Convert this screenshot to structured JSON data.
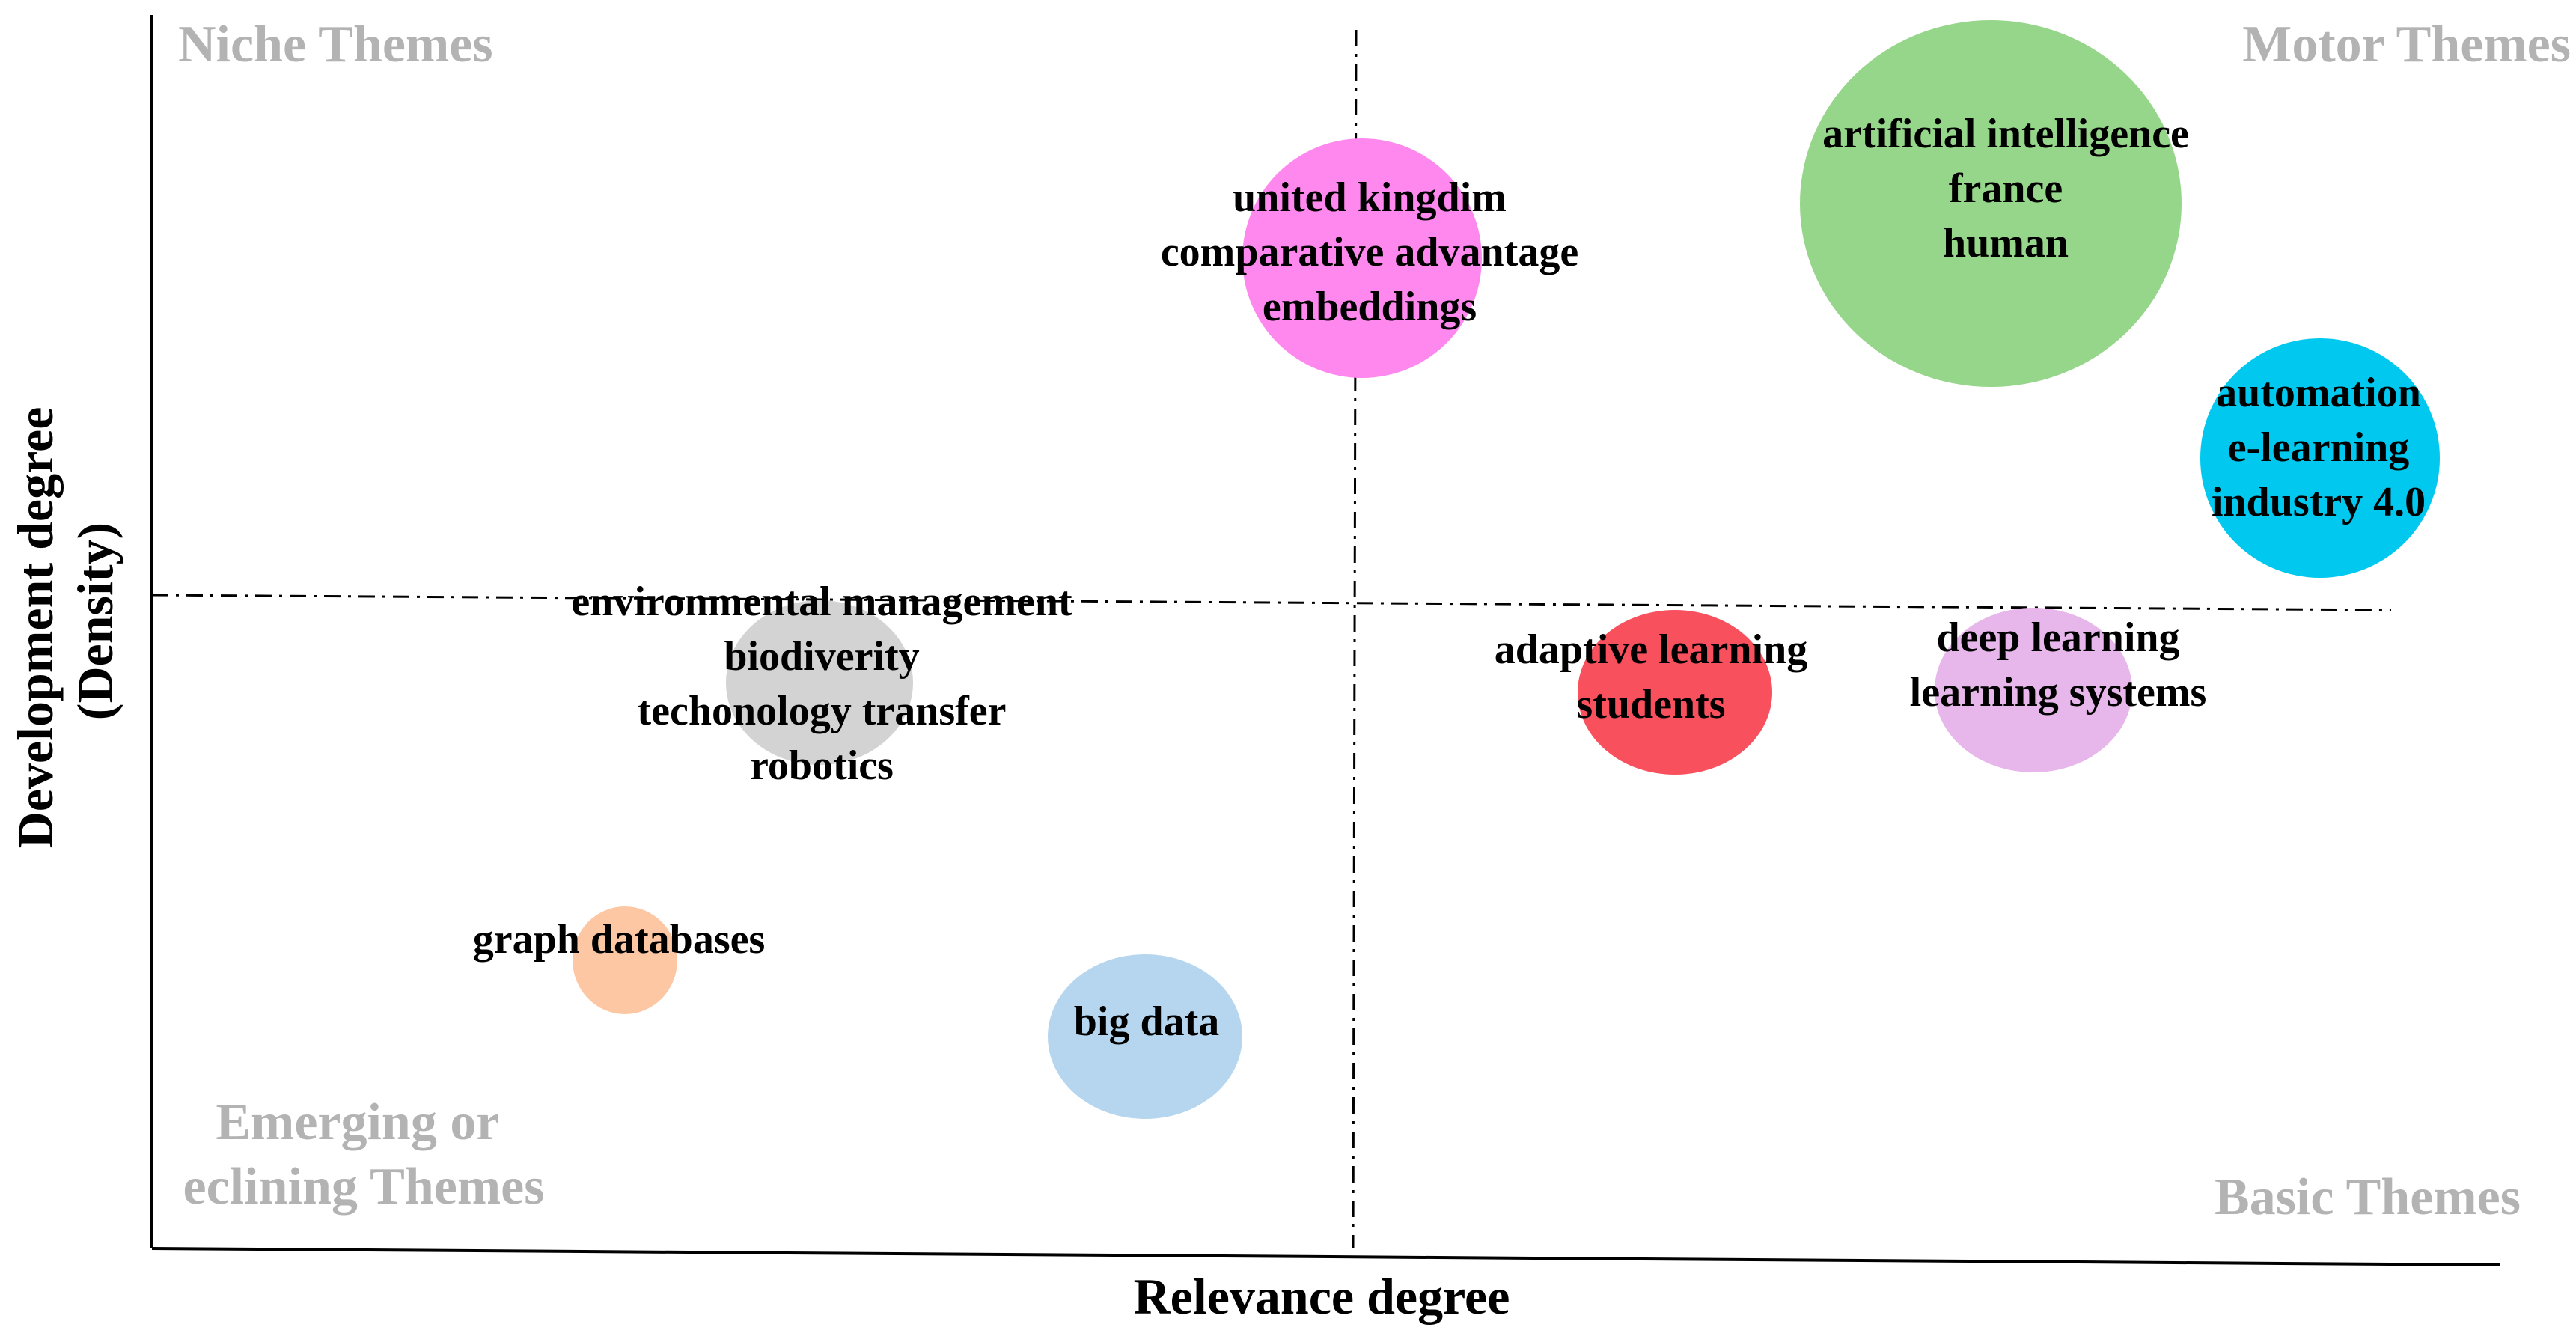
{
  "chart_data": {
    "type": "scatter",
    "xlabel": "Relevance degree",
    "ylabel_lines": [
      "Development degree",
      "(Density)"
    ],
    "xlim": [
      0,
      1
    ],
    "ylim": [
      0,
      1
    ],
    "divider": {
      "x": 0.5,
      "y": 0.5
    },
    "quadrants": [
      {
        "key": "niche",
        "lines": [
          "Niche Themes"
        ],
        "position": "top-left"
      },
      {
        "key": "motor",
        "lines": [
          "Motor Themes"
        ],
        "position": "top-right"
      },
      {
        "key": "emerging",
        "lines": [
          "Emerging or",
          "eclining Themes"
        ],
        "position": "bottom-left"
      },
      {
        "key": "basic",
        "lines": [
          "Basic Themes"
        ],
        "position": "bottom-right"
      }
    ],
    "clusters": [
      {
        "key": "united-kingdim",
        "labels": [
          "united kingdim",
          "comparative advantage",
          "embeddings"
        ],
        "relevance": 0.51,
        "density": 0.81,
        "size": 0.42,
        "color": "#ff88ee"
      },
      {
        "key": "artificial-intelligence",
        "labels": [
          "artificial intelligence",
          "france",
          "human"
        ],
        "relevance": 0.77,
        "density": 0.85,
        "size": 1.0,
        "color": "#96d68a"
      },
      {
        "key": "automation",
        "labels": [
          "automation",
          "e-learning",
          "industry 4.0"
        ],
        "relevance": 0.94,
        "density": 0.64,
        "size": 0.58,
        "color": "#00c8ee"
      },
      {
        "key": "environmental-management",
        "labels": [
          "environmental management",
          "biodiverity",
          "techonology transfer",
          "robotics"
        ],
        "relevance": 0.23,
        "density": 0.46,
        "size": 0.42,
        "color": "#d3d3d3"
      },
      {
        "key": "adaptive-learning",
        "labels": [
          "adaptive learning",
          "students"
        ],
        "relevance": 0.61,
        "density": 0.45,
        "size": 0.42,
        "color": "#f9505e"
      },
      {
        "key": "deep-learning",
        "labels": [
          "deep learning",
          "learning systems"
        ],
        "relevance": 0.76,
        "density": 0.45,
        "size": 0.42,
        "color": "#e7b6ea"
      },
      {
        "key": "graph-databases",
        "labels": [
          "graph databases"
        ],
        "relevance": 0.19,
        "density": 0.24,
        "size": 0.12,
        "color": "#fcc7a2"
      },
      {
        "key": "big-data",
        "labels": [
          "big data"
        ],
        "relevance": 0.42,
        "density": 0.17,
        "size": 0.4,
        "color": "#b5d6ee"
      }
    ]
  }
}
